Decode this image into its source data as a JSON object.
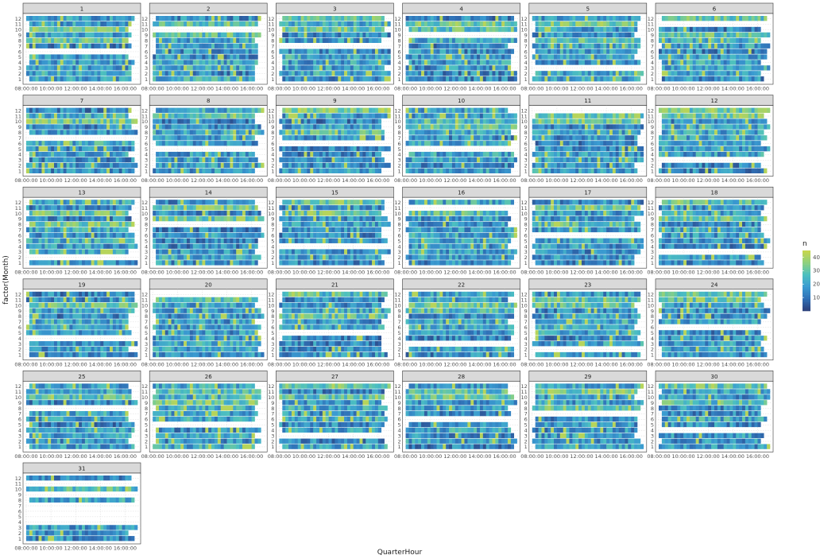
{
  "chart_data": {
    "type": "heatmap",
    "facet_variable": "day",
    "facets": [
      "1",
      "2",
      "3",
      "4",
      "5",
      "6",
      "7",
      "8",
      "9",
      "10",
      "11",
      "12",
      "13",
      "14",
      "15",
      "16",
      "17",
      "18",
      "19",
      "20",
      "21",
      "22",
      "23",
      "24",
      "25",
      "26",
      "27",
      "28",
      "29",
      "30",
      "31"
    ],
    "xlabel": "QuarterHour",
    "ylabel": "factor(Month)",
    "x_ticks": [
      "08:00:00",
      "10:00:00",
      "12:00:00",
      "14:00:00",
      "16:00:00"
    ],
    "x_range": [
      "08:00:00",
      "17:00:00"
    ],
    "y_ticks": [
      "1",
      "2",
      "3",
      "4",
      "5",
      "6",
      "7",
      "8",
      "9",
      "10",
      "11",
      "12"
    ],
    "fill_variable": "n",
    "legend_ticks": [
      10,
      20,
      30,
      40
    ],
    "fill_range": [
      0,
      45
    ],
    "colorscale": [
      "#2c3e78",
      "#2f6fb5",
      "#3a9bd1",
      "#4cc0c0",
      "#8fd17e",
      "#c9d64a"
    ],
    "legend_position": "right",
    "grid": true,
    "missing_months_by_day": {
      "1": [
        6
      ],
      "2": [
        10
      ],
      "3": [
        7
      ],
      "4": [
        9
      ],
      "5": [
        3
      ],
      "6": [
        11
      ],
      "7": [
        7
      ],
      "8": [
        5
      ],
      "9": [
        6
      ],
      "10": [
        5
      ],
      "11": [
        12
      ],
      "12": [
        3
      ],
      "13": [
        2
      ],
      "14": [
        8
      ],
      "15": [
        4
      ],
      "16": [
        11
      ],
      "17": [
        6
      ],
      "18": [
        3
      ],
      "19": [
        4
      ],
      "20": [
        12
      ],
      "21": [
        5
      ],
      "22": [
        3
      ],
      "23": [
        2
      ],
      "24": [
        6
      ],
      "25": [
        8
      ],
      "26": [
        5
      ],
      "27": [
        3
      ],
      "28": [
        6
      ],
      "29": [
        7
      ],
      "30": [
        4
      ],
      "31": [
        4,
        5,
        6,
        7,
        9,
        11
      ]
    }
  }
}
